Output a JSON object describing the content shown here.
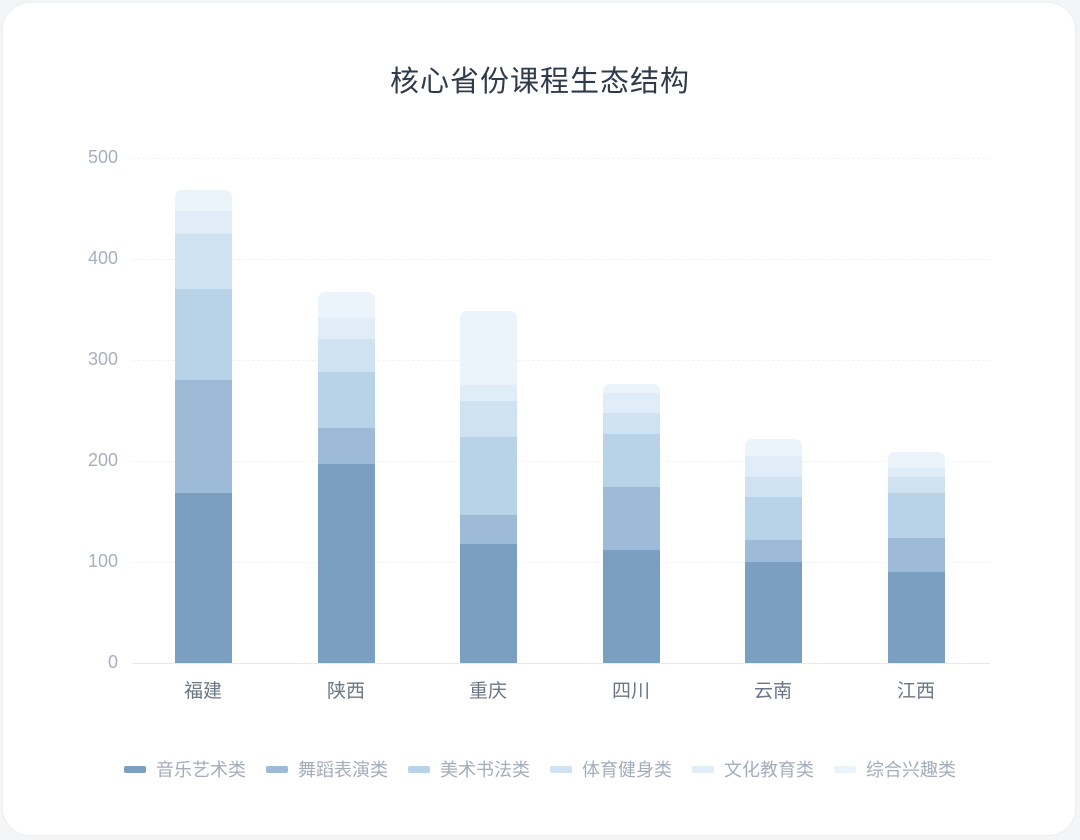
{
  "chart_data": {
    "type": "bar",
    "stacked": true,
    "title": "核心省份课程生态结构",
    "xlabel": "",
    "ylabel": "",
    "ylim": [
      0,
      500
    ],
    "yticks": [
      0,
      100,
      200,
      300,
      400,
      500
    ],
    "grid": true,
    "legend_position": "bottom",
    "categories": [
      "福建",
      "陕西",
      "重庆",
      "四川",
      "云南",
      "江西"
    ],
    "series": [
      {
        "name": "音乐艺术类",
        "color": "#7b9fc0",
        "values": [
          168,
          197,
          118,
          112,
          100,
          90
        ]
      },
      {
        "name": "舞蹈表演类",
        "color": "#9dbbd6",
        "values": [
          112,
          36,
          29,
          62,
          22,
          34
        ]
      },
      {
        "name": "美术书法类",
        "color": "#b8d2e8",
        "values": [
          90,
          55,
          77,
          53,
          42,
          44
        ]
      },
      {
        "name": "体育健身类",
        "color": "#cfe2f1",
        "values": [
          55,
          33,
          35,
          21,
          20,
          16
        ]
      },
      {
        "name": "文化教育类",
        "color": "#e0edf8",
        "values": [
          23,
          21,
          16,
          19,
          21,
          9
        ]
      },
      {
        "name": "综合兴趣类",
        "color": "#ecf4fb",
        "values": [
          20,
          25,
          74,
          9,
          17,
          16
        ]
      }
    ]
  }
}
